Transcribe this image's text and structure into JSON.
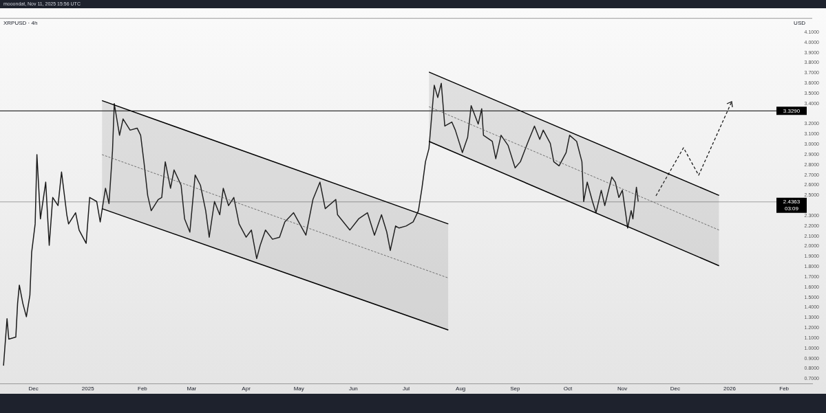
{
  "chart_data": {
    "type": "line",
    "title": "XRPUSD · 4h",
    "ylabel": "USD",
    "annotations": [
      "mooondat, Nov 11, 2025 15:56 UTC"
    ],
    "xlim": [
      "2024-11-12",
      "2026-02-17"
    ],
    "xticks": [
      {
        "value": "2024-12-01",
        "label": "Dec"
      },
      {
        "value": "2025-01-01",
        "label": "2025"
      },
      {
        "value": "2025-02-01",
        "label": "Feb"
      },
      {
        "value": "2025-03-01",
        "label": "Mar"
      },
      {
        "value": "2025-04-01",
        "label": "Apr"
      },
      {
        "value": "2025-05-01",
        "label": "May"
      },
      {
        "value": "2025-06-01",
        "label": "Jun"
      },
      {
        "value": "2025-07-01",
        "label": "Jul"
      },
      {
        "value": "2025-08-01",
        "label": "Aug"
      },
      {
        "value": "2025-09-01",
        "label": "Sep"
      },
      {
        "value": "2025-10-01",
        "label": "Oct"
      },
      {
        "value": "2025-11-01",
        "label": "Nov"
      },
      {
        "value": "2025-12-01",
        "label": "Dec"
      },
      {
        "value": "2026-01-01",
        "label": "2026"
      },
      {
        "value": "2026-02-01",
        "label": "Feb"
      }
    ],
    "ylim": [
      0.65,
      4.24
    ],
    "yticks": [
      {
        "value": 0.7,
        "label": "0.7000"
      },
      {
        "value": 0.8,
        "label": "0.8000"
      },
      {
        "value": 0.9,
        "label": "0.9000"
      },
      {
        "value": 1.0,
        "label": "1.0000"
      },
      {
        "value": 1.1,
        "label": "1.1000"
      },
      {
        "value": 1.2,
        "label": "1.2000"
      },
      {
        "value": 1.3,
        "label": "1.3000"
      },
      {
        "value": 1.4,
        "label": "1.4000"
      },
      {
        "value": 1.5,
        "label": "1.5000"
      },
      {
        "value": 1.6,
        "label": "1.6000"
      },
      {
        "value": 1.7,
        "label": "1.7000"
      },
      {
        "value": 1.8,
        "label": "1.8000"
      },
      {
        "value": 1.9,
        "label": "1.9000"
      },
      {
        "value": 2.0,
        "label": "2.0000"
      },
      {
        "value": 2.1,
        "label": "2.1000"
      },
      {
        "value": 2.2,
        "label": "2.2000"
      },
      {
        "value": 2.3,
        "label": "2.3000"
      },
      {
        "value": 2.5,
        "label": "2.5000"
      },
      {
        "value": 2.6,
        "label": "2.6000"
      },
      {
        "value": 2.7,
        "label": "2.7000"
      },
      {
        "value": 2.8,
        "label": "2.8000"
      },
      {
        "value": 2.9,
        "label": "2.9000"
      },
      {
        "value": 3.0,
        "label": "3.0000"
      },
      {
        "value": 3.1,
        "label": "3.1000"
      },
      {
        "value": 3.2,
        "label": "3.2000"
      },
      {
        "value": 3.4,
        "label": "3.4000"
      },
      {
        "value": 3.5,
        "label": "3.5000"
      },
      {
        "value": 3.6,
        "label": "3.6000"
      },
      {
        "value": 3.7,
        "label": "3.7000"
      },
      {
        "value": 3.8,
        "label": "3.8000"
      },
      {
        "value": 3.9,
        "label": "3.9000"
      },
      {
        "value": 4.0,
        "label": "4.0000"
      },
      {
        "value": 4.1,
        "label": "4.1000"
      }
    ],
    "ref_lines": [
      {
        "axis": "y",
        "value": 3.329,
        "label": "3.3290",
        "color": "#000000"
      },
      {
        "axis": "y",
        "value": 2.4363,
        "label": "2.4363\n03:09",
        "color": "#9e9e9e"
      }
    ],
    "series": [
      {
        "type": "line",
        "color": "#000000",
        "x": [
          "2025-01-09",
          "2025-07-25"
        ],
        "values": [
          3.43,
          2.22
        ]
      },
      {
        "type": "line",
        "color": "#000000",
        "x": [
          "2025-01-09",
          "2025-07-25"
        ],
        "values": [
          2.37,
          1.18
        ]
      },
      {
        "type": "line",
        "color": "#555555",
        "line_style": "dashed",
        "x": [
          "2025-01-09",
          "2025-07-25"
        ],
        "values": [
          2.9,
          1.69
        ],
        "lower": [
          2.37,
          1.18
        ],
        "upper": [
          3.43,
          2.22
        ]
      },
      {
        "type": "line",
        "color": "#000000",
        "x": [
          "2025-07-14",
          "2025-12-26"
        ],
        "values": [
          3.71,
          2.5
        ]
      },
      {
        "type": "line",
        "color": "#000000",
        "x": [
          "2025-07-14",
          "2025-12-26"
        ],
        "values": [
          3.03,
          1.81
        ]
      },
      {
        "type": "line",
        "color": "#555555",
        "line_style": "dashed",
        "x": [
          "2025-07-14",
          "2025-12-26"
        ],
        "values": [
          3.37,
          2.16
        ],
        "lower": [
          3.03,
          1.81
        ],
        "upper": [
          3.71,
          2.5
        ]
      },
      {
        "type": "line",
        "color": "#1a1a1a",
        "x": [
          "2024-11-14",
          "2024-11-16",
          "2024-11-17",
          "2024-11-21",
          "2024-11-22",
          "2024-11-23",
          "2024-11-25",
          "2024-11-27",
          "2024-11-29",
          "2024-11-30",
          "2024-12-02",
          "2024-12-03",
          "2024-12-05",
          "2024-12-08",
          "2024-12-10",
          "2024-12-12",
          "2024-12-15",
          "2024-12-17",
          "2024-12-20",
          "2024-12-21",
          "2024-12-25",
          "2024-12-27",
          "2024-12-31",
          "2025-01-02",
          "2025-01-06",
          "2025-01-08",
          "2025-01-11",
          "2025-01-13",
          "2025-01-15",
          "2025-01-16",
          "2025-01-19",
          "2025-01-21",
          "2025-01-25",
          "2025-01-29",
          "2025-01-31",
          "2025-02-02",
          "2025-02-04",
          "2025-02-06",
          "2025-02-10",
          "2025-02-12",
          "2025-02-14",
          "2025-02-17",
          "2025-02-19",
          "2025-02-23",
          "2025-02-25",
          "2025-02-28",
          "2025-03-03",
          "2025-03-06",
          "2025-03-09",
          "2025-03-11",
          "2025-03-14",
          "2025-03-17",
          "2025-03-19",
          "2025-03-22",
          "2025-03-25",
          "2025-03-28",
          "2025-04-01",
          "2025-04-04",
          "2025-04-07",
          "2025-04-09",
          "2025-04-12",
          "2025-04-16",
          "2025-04-20",
          "2025-04-23",
          "2025-04-28",
          "2025-05-05",
          "2025-05-09",
          "2025-05-13",
          "2025-05-16",
          "2025-05-22",
          "2025-05-23",
          "2025-05-30",
          "2025-06-04",
          "2025-06-09",
          "2025-06-13",
          "2025-06-17",
          "2025-06-20",
          "2025-06-22",
          "2025-06-25",
          "2025-06-27",
          "2025-07-01",
          "2025-07-05",
          "2025-07-08",
          "2025-07-10",
          "2025-07-12",
          "2025-07-14",
          "2025-07-17",
          "2025-07-19",
          "2025-07-21",
          "2025-07-23",
          "2025-07-27",
          "2025-07-29",
          "2025-08-02",
          "2025-08-05",
          "2025-08-07",
          "2025-08-11",
          "2025-08-13",
          "2025-08-14",
          "2025-08-19",
          "2025-08-21",
          "2025-08-24",
          "2025-08-28",
          "2025-09-01",
          "2025-09-04",
          "2025-09-08",
          "2025-09-12",
          "2025-09-15",
          "2025-09-17",
          "2025-09-21",
          "2025-09-23",
          "2025-09-26",
          "2025-09-30",
          "2025-10-02",
          "2025-10-06",
          "2025-10-09",
          "2025-10-10",
          "2025-10-12",
          "2025-10-15",
          "2025-10-17",
          "2025-10-20",
          "2025-10-22",
          "2025-10-26",
          "2025-10-28",
          "2025-10-30",
          "2025-11-01",
          "2025-11-03",
          "2025-11-04",
          "2025-11-06",
          "2025-11-07",
          "2025-11-09",
          "2025-11-10"
        ],
        "values": [
          0.83,
          1.29,
          1.09,
          1.11,
          1.44,
          1.62,
          1.44,
          1.31,
          1.52,
          1.94,
          2.22,
          2.9,
          2.27,
          2.63,
          2.01,
          2.48,
          2.4,
          2.73,
          2.31,
          2.22,
          2.33,
          2.16,
          2.03,
          2.48,
          2.44,
          2.24,
          2.57,
          2.42,
          2.94,
          3.4,
          3.09,
          3.25,
          3.14,
          3.16,
          3.09,
          2.81,
          2.5,
          2.35,
          2.46,
          2.48,
          2.83,
          2.57,
          2.75,
          2.6,
          2.27,
          2.14,
          2.7,
          2.6,
          2.35,
          2.09,
          2.44,
          2.31,
          2.57,
          2.4,
          2.48,
          2.22,
          2.09,
          2.16,
          1.88,
          2.01,
          2.16,
          2.07,
          2.09,
          2.24,
          2.33,
          2.11,
          2.46,
          2.63,
          2.37,
          2.46,
          2.31,
          2.16,
          2.27,
          2.33,
          2.11,
          2.31,
          2.14,
          1.96,
          2.2,
          2.18,
          2.2,
          2.24,
          2.35,
          2.57,
          2.83,
          2.96,
          3.58,
          3.46,
          3.6,
          3.18,
          3.22,
          3.14,
          2.92,
          3.07,
          3.38,
          3.2,
          3.35,
          3.09,
          3.03,
          2.86,
          3.09,
          2.99,
          2.77,
          2.83,
          3.01,
          3.18,
          3.05,
          3.14,
          3.01,
          2.83,
          2.79,
          2.92,
          3.09,
          3.03,
          2.83,
          2.44,
          2.63,
          2.44,
          2.33,
          2.55,
          2.4,
          2.68,
          2.63,
          2.48,
          2.55,
          2.31,
          2.18,
          2.35,
          2.27,
          2.58,
          2.44
        ]
      }
    ]
  }
}
